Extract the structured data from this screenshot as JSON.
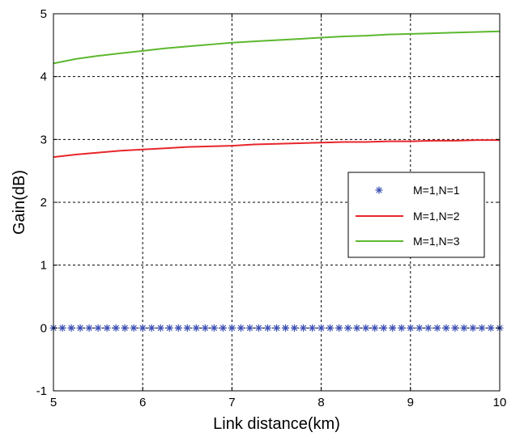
{
  "chart_data": {
    "type": "line",
    "xlabel": "Link distance(km)",
    "ylabel": "Gain(dB)",
    "xlim": [
      5,
      10
    ],
    "ylim": [
      -1,
      5
    ],
    "xticks": [
      "5",
      "6",
      "7",
      "8",
      "9",
      "10"
    ],
    "yticks": [
      "-1",
      "0",
      "1",
      "2",
      "3",
      "4",
      "5"
    ],
    "grid": true,
    "legend_position": "right",
    "series": [
      {
        "name": "M=1,N=1",
        "color": "#3a4fb3",
        "marker": "asterisk",
        "x": [
          5.0,
          5.1,
          5.2,
          5.3,
          5.4,
          5.5,
          5.6,
          5.7,
          5.8,
          5.9,
          6.0,
          6.1,
          6.2,
          6.3,
          6.4,
          6.5,
          6.6,
          6.7,
          6.8,
          6.9,
          7.0,
          7.1,
          7.2,
          7.3,
          7.4,
          7.5,
          7.6,
          7.7,
          7.8,
          7.9,
          8.0,
          8.1,
          8.2,
          8.3,
          8.4,
          8.5,
          8.6,
          8.7,
          8.8,
          8.9,
          9.0,
          9.1,
          9.2,
          9.3,
          9.4,
          9.5,
          9.6,
          9.7,
          9.8,
          9.9,
          10.0
        ],
        "y": [
          0,
          0,
          0,
          0,
          0,
          0,
          0,
          0,
          0,
          0,
          0,
          0,
          0,
          0,
          0,
          0,
          0,
          0,
          0,
          0,
          0,
          0,
          0,
          0,
          0,
          0,
          0,
          0,
          0,
          0,
          0,
          0,
          0,
          0,
          0,
          0,
          0,
          0,
          0,
          0,
          0,
          0,
          0,
          0,
          0,
          0,
          0,
          0,
          0,
          0,
          0
        ]
      },
      {
        "name": "M=1,N=2",
        "color": "#e8262a",
        "marker": "none",
        "x": [
          5.0,
          5.25,
          5.5,
          5.75,
          6.0,
          6.25,
          6.5,
          6.75,
          7.0,
          7.25,
          7.5,
          7.75,
          8.0,
          8.25,
          8.5,
          8.75,
          9.0,
          9.25,
          9.5,
          9.75,
          10.0
        ],
        "y": [
          2.72,
          2.76,
          2.79,
          2.82,
          2.84,
          2.86,
          2.88,
          2.89,
          2.9,
          2.92,
          2.93,
          2.94,
          2.95,
          2.96,
          2.96,
          2.97,
          2.97,
          2.98,
          2.98,
          2.99,
          2.99
        ]
      },
      {
        "name": "M=1,N=3",
        "color": "#5cb82e",
        "marker": "none",
        "x": [
          5.0,
          5.25,
          5.5,
          5.75,
          6.0,
          6.25,
          6.5,
          6.75,
          7.0,
          7.25,
          7.5,
          7.75,
          8.0,
          8.25,
          8.5,
          8.75,
          9.0,
          9.25,
          9.5,
          9.75,
          10.0
        ],
        "y": [
          4.21,
          4.28,
          4.33,
          4.37,
          4.41,
          4.45,
          4.48,
          4.51,
          4.54,
          4.56,
          4.58,
          4.6,
          4.62,
          4.64,
          4.65,
          4.67,
          4.68,
          4.69,
          4.7,
          4.71,
          4.72
        ]
      }
    ]
  }
}
